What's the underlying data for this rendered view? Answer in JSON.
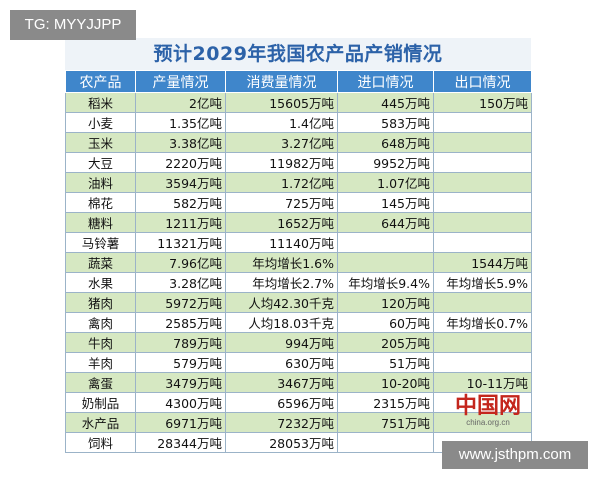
{
  "watermark_top": "TG: MYYJJPP",
  "watermark_bottom": "www.jsthpm.com",
  "logo": {
    "mark": "中国网",
    "site": "china.org.cn"
  },
  "table": {
    "title": "预计2029年我国农产品产销情况",
    "header": [
      "农产品",
      "产量情况",
      "消费量情况",
      "进口情况",
      "出口情况"
    ],
    "rows": [
      [
        "稻米",
        "2亿吨",
        "15605万吨",
        "445万吨",
        "150万吨"
      ],
      [
        "小麦",
        "1.35亿吨",
        "1.4亿吨",
        "583万吨",
        null
      ],
      [
        "玉米",
        "3.38亿吨",
        "3.27亿吨",
        "648万吨",
        null
      ],
      [
        "大豆",
        "2220万吨",
        "11982万吨",
        "9952万吨",
        null
      ],
      [
        "油料",
        "3594万吨",
        "1.72亿吨",
        "1.07亿吨",
        null
      ],
      [
        "棉花",
        "582万吨",
        "725万吨",
        "145万吨",
        null
      ],
      [
        "糖料",
        "1211万吨",
        "1652万吨",
        "644万吨",
        null
      ],
      [
        "马铃薯",
        "11321万吨",
        "11140万吨",
        null,
        null
      ],
      [
        "蔬菜",
        "7.96亿吨",
        "年均增长1.6%",
        null,
        "1544万吨"
      ],
      [
        "水果",
        "3.28亿吨",
        "年均增长2.7%",
        "年均增长9.4%",
        "年均增长5.9%"
      ],
      [
        "猪肉",
        "5972万吨",
        "人均42.30千克",
        "120万吨",
        null
      ],
      [
        "禽肉",
        "2585万吨",
        "人均18.03千克",
        "60万吨",
        "年均增长0.7%"
      ],
      [
        "牛肉",
        "789万吨",
        "994万吨",
        "205万吨",
        null
      ],
      [
        "羊肉",
        "579万吨",
        "630万吨",
        "51万吨",
        null
      ],
      [
        "禽蛋",
        "3479万吨",
        "3467万吨",
        "10-20吨",
        "10-11万吨"
      ],
      [
        "奶制品",
        "4300万吨",
        "6596万吨",
        "2315万吨",
        null
      ],
      [
        "水产品",
        "6971万吨",
        "7232万吨",
        "751万吨",
        null
      ],
      [
        "饲料",
        "28344万吨",
        "28053万吨",
        null,
        null
      ]
    ]
  }
}
